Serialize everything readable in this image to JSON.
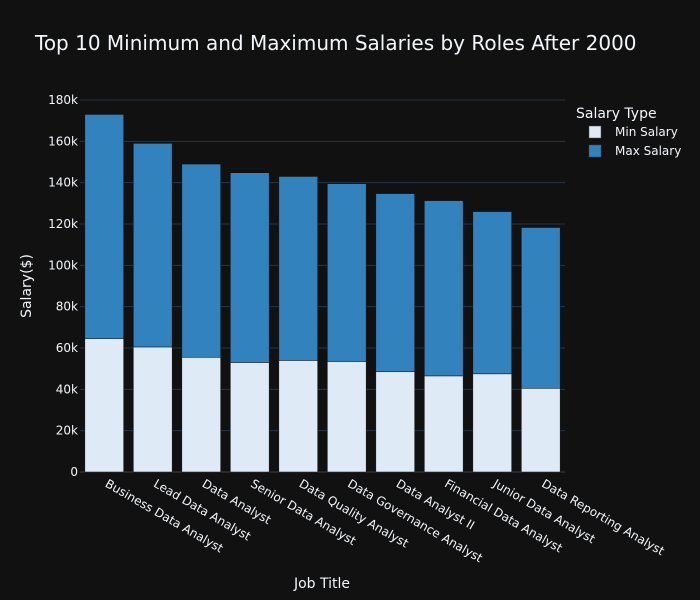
{
  "chart_data": {
    "type": "bar",
    "stacked": true,
    "title": "Top 10 Minimum and Maximum Salaries by Roles After 2000",
    "xlabel": "Job Title",
    "ylabel": "Salary($)",
    "ylim": [
      0,
      180000
    ],
    "yticks": [
      0,
      20000,
      40000,
      60000,
      80000,
      100000,
      120000,
      140000,
      160000,
      180000
    ],
    "ytick_labels": [
      "0",
      "20k",
      "40k",
      "60k",
      "80k",
      "100k",
      "120k",
      "140k",
      "160k",
      "180k"
    ],
    "grid": true,
    "legend": {
      "title": "Salary Type",
      "position": "top-right"
    },
    "categories": [
      "Business Data Analyst",
      "Lead Data Analyst",
      "Data Analyst",
      "Senior Data Analyst",
      "Data Quality Analyst",
      "Data Governance Analyst",
      "Data Analyst II",
      "Financial Data Analyst",
      "Junior Data Analyst",
      "Data Reporting Analyst"
    ],
    "series": [
      {
        "name": "Min Salary",
        "color": "#deebf7",
        "values": [
          64500,
          60500,
          55500,
          53000,
          54000,
          53500,
          48500,
          46500,
          47500,
          40500
        ]
      },
      {
        "name": "Max Salary",
        "color": "#3182bd",
        "values": [
          108500,
          98500,
          93500,
          91800,
          89000,
          86000,
          86200,
          84800,
          78500,
          77800
        ]
      }
    ]
  }
}
